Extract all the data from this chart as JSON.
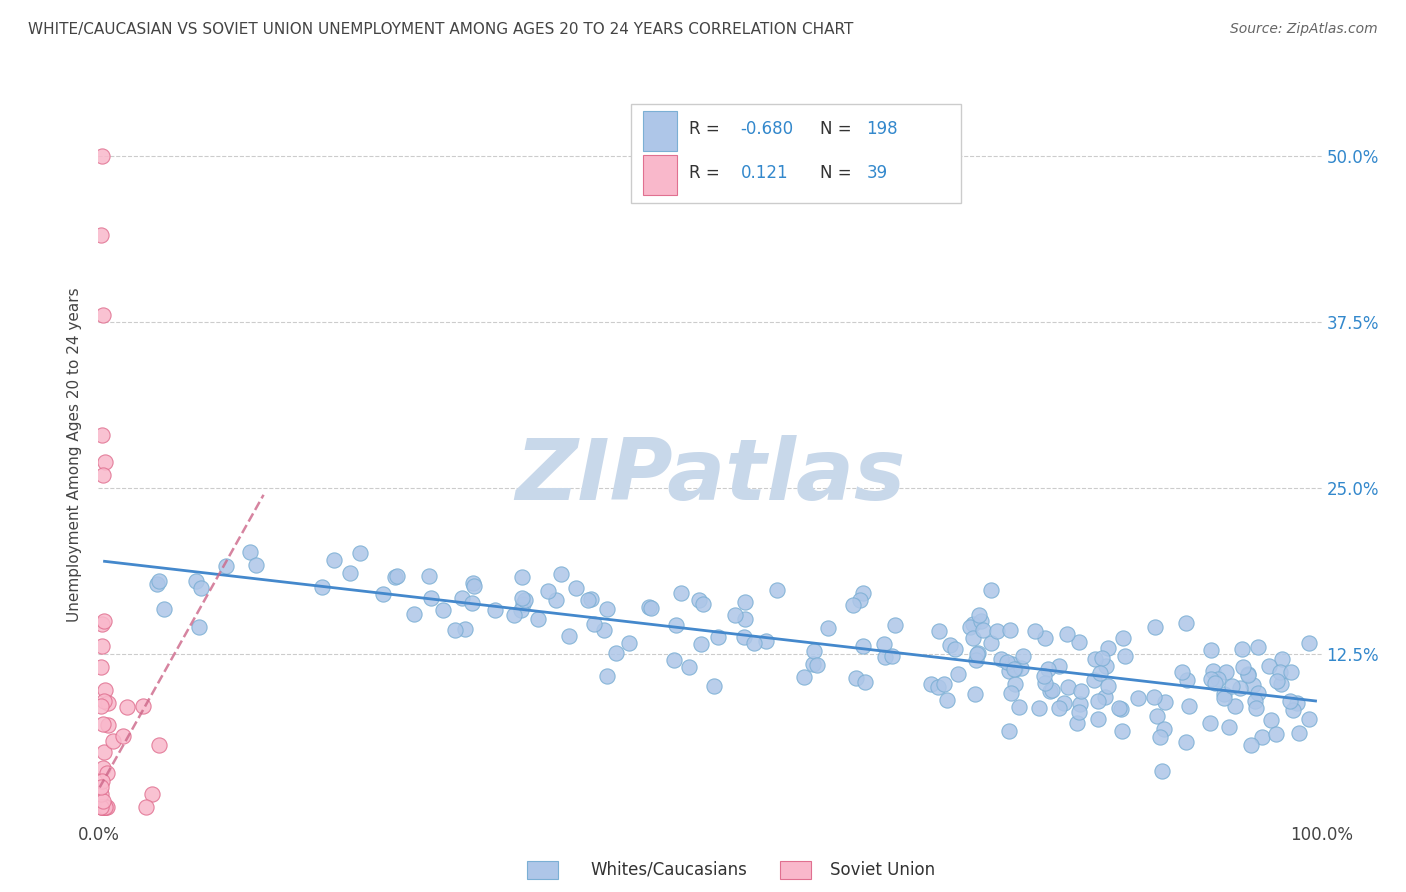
{
  "title": "WHITE/CAUCASIAN VS SOVIET UNION UNEMPLOYMENT AMONG AGES 20 TO 24 YEARS CORRELATION CHART",
  "source": "Source: ZipAtlas.com",
  "ylabel": "Unemployment Among Ages 20 to 24 years",
  "legend_blue_label": "Whites/Caucasians",
  "legend_pink_label": "Soviet Union",
  "blue_color": "#aec6e8",
  "blue_edge_color": "#7bafd4",
  "pink_color": "#f9b8cb",
  "pink_edge_color": "#e07090",
  "trend_blue_color": "#4488cc",
  "trend_pink_color": "#cc6688",
  "watermark": "ZIPatlas",
  "watermark_color": "#c8d8ea",
  "background_color": "#ffffff",
  "grid_color": "#cccccc",
  "xlim": [
    0.0,
    1.0
  ],
  "ylim": [
    0.0,
    0.55
  ],
  "blue_trend_x": [
    0.005,
    0.995
  ],
  "blue_trend_y": [
    0.195,
    0.09
  ],
  "pink_trend_x_start": 0.001,
  "pink_trend_x_end": 0.135,
  "pink_trend_y_start": 0.025,
  "pink_trend_y_end": 0.245,
  "y_ticks": [
    0.125,
    0.25,
    0.375,
    0.5
  ],
  "y_tick_labels": [
    "12.5%",
    "25.0%",
    "37.5%",
    "50.0%"
  ],
  "x_tick_labels_left": "0.0%",
  "x_tick_labels_right": "100.0%",
  "title_color": "#444444",
  "source_color": "#666666",
  "ytick_color": "#3388cc",
  "xtick_color": "#444444"
}
